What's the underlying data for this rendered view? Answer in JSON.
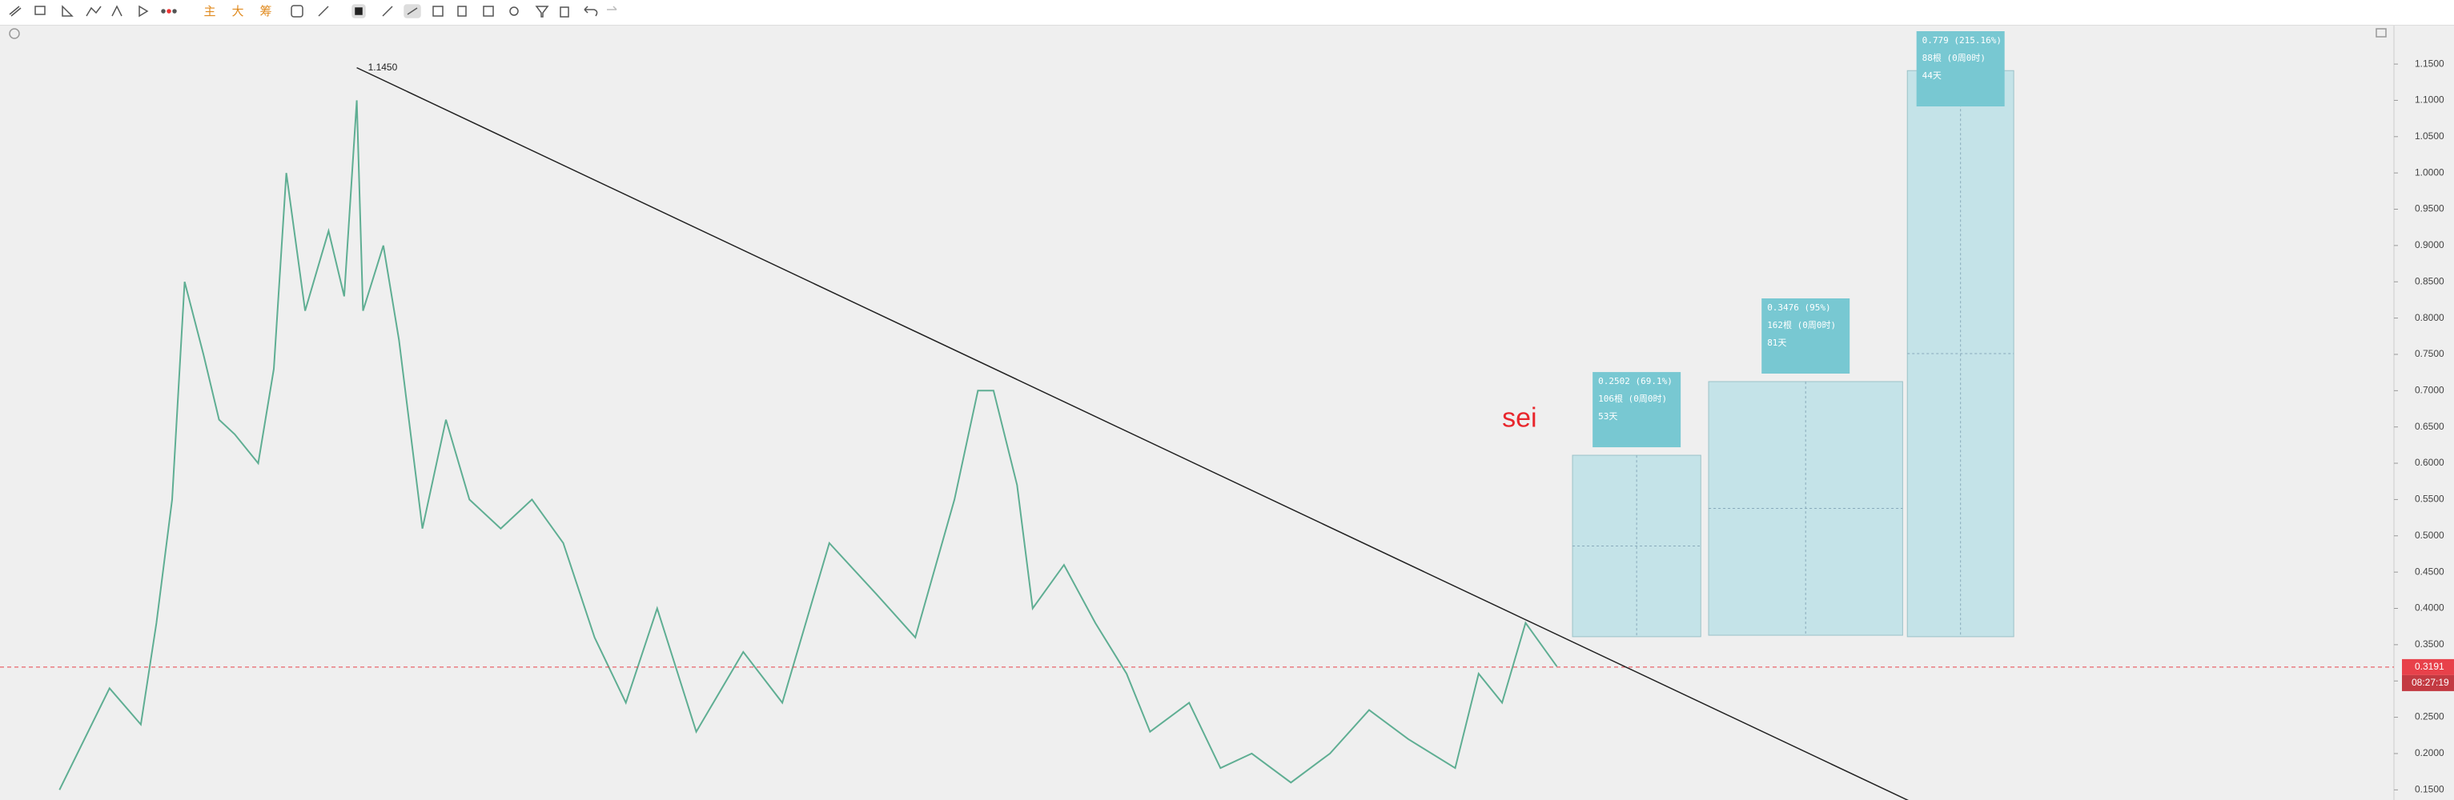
{
  "toolbar": [
    "主",
    "大",
    "筹"
  ],
  "chart_data": {
    "type": "line",
    "x": [
      0,
      32,
      52,
      62,
      72,
      80,
      92,
      102,
      112,
      127,
      137,
      145,
      157,
      172,
      182,
      190,
      194,
      207,
      217,
      232,
      247,
      262,
      282,
      302,
      322,
      342,
      362,
      382,
      407,
      437,
      462,
      492,
      522,
      547,
      572,
      587,
      597,
      612,
      622,
      642,
      662,
      682,
      697,
      722,
      742,
      762,
      787,
      812,
      837,
      862,
      892,
      907,
      922,
      937,
      957
    ],
    "values": [
      0.15,
      0.29,
      0.24,
      0.38,
      0.55,
      0.85,
      0.75,
      0.66,
      0.64,
      0.6,
      0.73,
      1.0,
      0.81,
      0.92,
      0.83,
      1.1,
      0.81,
      0.9,
      0.77,
      0.51,
      0.66,
      0.55,
      0.51,
      0.55,
      0.49,
      0.36,
      0.27,
      0.4,
      0.23,
      0.34,
      0.27,
      0.49,
      0.42,
      0.36,
      0.55,
      0.7,
      0.7,
      0.57,
      0.4,
      0.46,
      0.38,
      0.31,
      0.23,
      0.27,
      0.18,
      0.2,
      0.16,
      0.2,
      0.26,
      0.22,
      0.18,
      0.31,
      0.27,
      0.38,
      0.32
    ],
    "color": "#5fae93",
    "xlim": [
      -38,
      1492
    ],
    "ylim": [
      0.136,
      1.203
    ],
    "yticks": [
      {
        "value": 0.15,
        "label": "0.1500"
      },
      {
        "value": 0.2,
        "label": "0.2000"
      },
      {
        "value": 0.25,
        "label": "0.2500"
      },
      {
        "value": 0.3,
        "label": "0.3000"
      },
      {
        "value": 0.35,
        "label": "0.3500"
      },
      {
        "value": 0.4,
        "label": "0.4000"
      },
      {
        "value": 0.45,
        "label": "0.4500"
      },
      {
        "value": 0.5,
        "label": "0.5000"
      },
      {
        "value": 0.55,
        "label": "0.5500"
      },
      {
        "value": 0.6,
        "label": "0.6000"
      },
      {
        "value": 0.65,
        "label": "0.6500"
      },
      {
        "value": 0.7,
        "label": "0.7000"
      },
      {
        "value": 0.75,
        "label": "0.7500"
      },
      {
        "value": 0.8,
        "label": "0.8000"
      },
      {
        "value": 0.85,
        "label": "0.8500"
      },
      {
        "value": 0.9,
        "label": "0.9000"
      },
      {
        "value": 0.95,
        "label": "0.9500"
      },
      {
        "value": 1.0,
        "label": "1.0000"
      },
      {
        "value": 1.05,
        "label": "1.0500"
      },
      {
        "value": 1.1,
        "label": "1.1000"
      },
      {
        "value": 1.15,
        "label": "1.1500"
      }
    ],
    "trend_line": {
      "label": "1.1450",
      "x": [
        190,
        1182
      ],
      "y": [
        1.145,
        0.135
      ],
      "color": "#222222"
    },
    "annotation": {
      "text": "sei",
      "x": 922,
      "y": 0.66,
      "color": "#e8262c"
    },
    "measure_boxes": [
      {
        "x": [
          967,
          1049
        ],
        "y": [
          0.361,
          0.611
        ],
        "lines": [
          "0.2502 (69.1%)",
          "106根 (0周0时)",
          "53天"
        ]
      },
      {
        "x": [
          1054,
          1178
        ],
        "y": [
          0.363,
          0.7125
        ],
        "lines": [
          "0.3476 (95%)",
          "162根 (0周0时)",
          "81天"
        ]
      },
      {
        "x": [
          1181,
          1249
        ],
        "y": [
          0.361,
          1.141
        ],
        "lines": [
          "0.779 (215.16%)",
          "88根 (0周0时)",
          "44天"
        ]
      }
    ],
    "last_price": {
      "value": 0.3191,
      "countdown": "08:27:19",
      "color": "#e8414a"
    }
  }
}
